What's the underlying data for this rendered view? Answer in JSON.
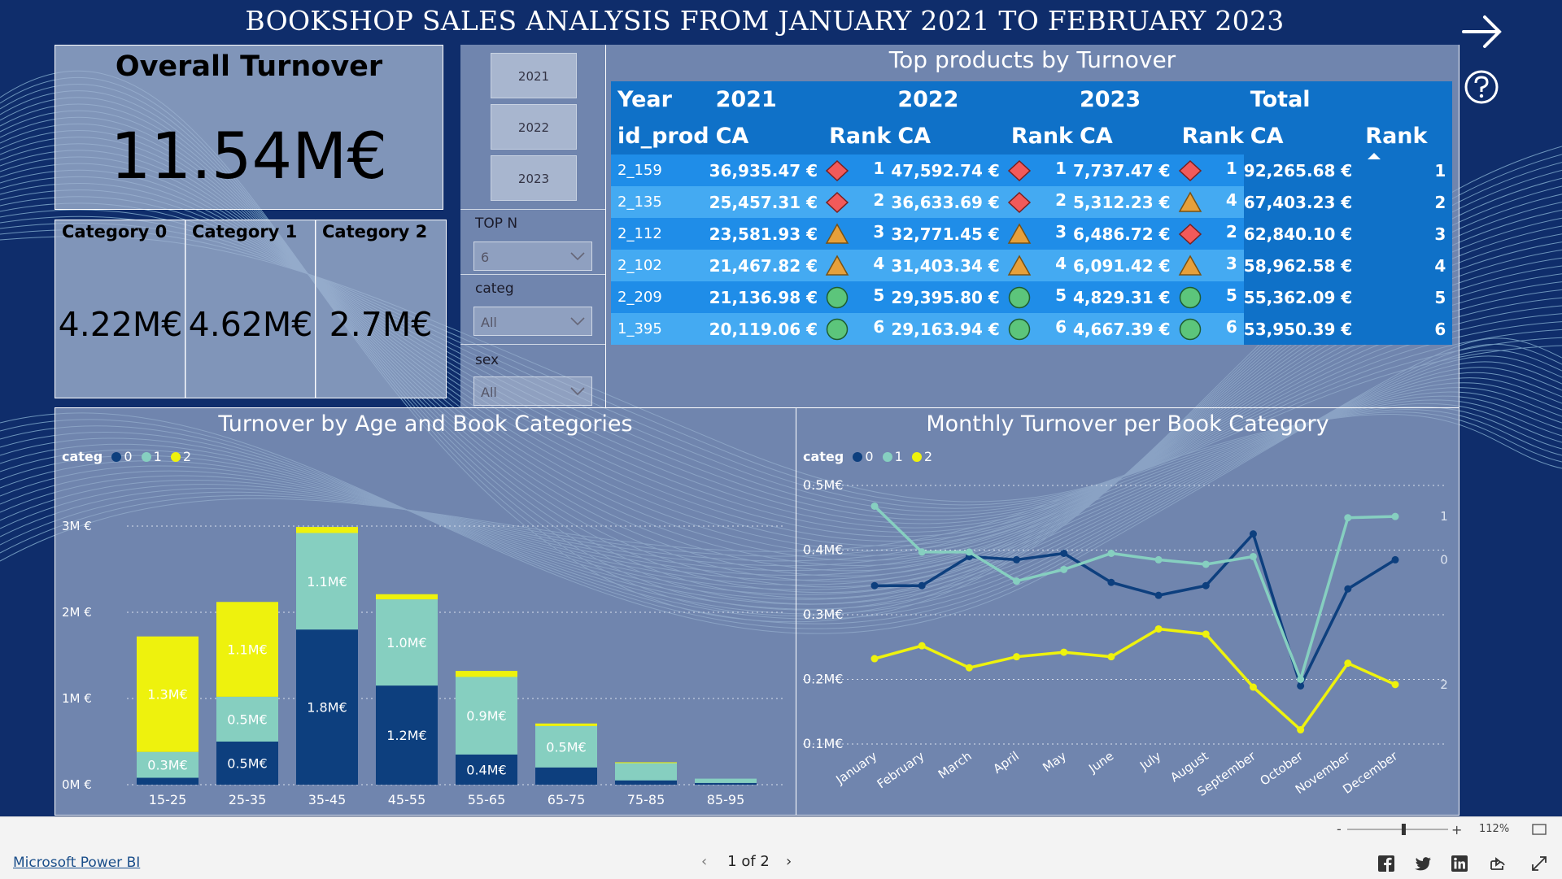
{
  "header": {
    "title": "BOOKSHOP SALES ANALYSIS FROM JANUARY 2021 TO FEBRUARY 2023"
  },
  "kpi": {
    "label": "Overall Turnover",
    "value": "11.54M€"
  },
  "categories": [
    {
      "label": "Category 0",
      "value": "4.22M€"
    },
    {
      "label": "Category 1",
      "value": "4.62M€"
    },
    {
      "label": "Category 2",
      "value": "2.7M€"
    }
  ],
  "slicers": {
    "years": [
      "2021",
      "2022",
      "2023"
    ],
    "topn": {
      "label": "TOP N",
      "value": "6"
    },
    "categ": {
      "label": "categ",
      "value": "All"
    },
    "sex": {
      "label": "sex",
      "value": "All"
    }
  },
  "top_products": {
    "title": "Top products by Turnover",
    "headers": {
      "year": "Year",
      "y2021": "2021",
      "y2022": "2022",
      "y2023": "2023",
      "total": "Total",
      "id": "id_prod",
      "ca": "CA",
      "rank": "Rank"
    },
    "rows": [
      {
        "id": "2_159",
        "ca2021": "36,935.47 €",
        "icon2021": "diamond",
        "rank2021": "1",
        "ca2022": "47,592.74 €",
        "icon2022": "diamond",
        "rank2022": "1",
        "ca2023": "7,737.47 €",
        "icon2023": "diamond",
        "rank2023": "1",
        "total": "92,265.68 €",
        "rank": "1"
      },
      {
        "id": "2_135",
        "ca2021": "25,457.31 €",
        "icon2021": "diamond",
        "rank2021": "2",
        "ca2022": "36,633.69 €",
        "icon2022": "diamond",
        "rank2022": "2",
        "ca2023": "5,312.23 €",
        "icon2023": "triangle",
        "rank2023": "4",
        "total": "67,403.23 €",
        "rank": "2"
      },
      {
        "id": "2_112",
        "ca2021": "23,581.93 €",
        "icon2021": "triangle",
        "rank2021": "3",
        "ca2022": "32,771.45 €",
        "icon2022": "triangle",
        "rank2022": "3",
        "ca2023": "6,486.72 €",
        "icon2023": "diamond",
        "rank2023": "2",
        "total": "62,840.10 €",
        "rank": "3"
      },
      {
        "id": "2_102",
        "ca2021": "21,467.82 €",
        "icon2021": "triangle",
        "rank2021": "4",
        "ca2022": "31,403.34 €",
        "icon2022": "triangle",
        "rank2022": "4",
        "ca2023": "6,091.42 €",
        "icon2023": "triangle",
        "rank2023": "3",
        "total": "58,962.58 €",
        "rank": "4"
      },
      {
        "id": "2_209",
        "ca2021": "21,136.98 €",
        "icon2021": "circle",
        "rank2021": "5",
        "ca2022": "29,395.80 €",
        "icon2022": "circle",
        "rank2022": "5",
        "ca2023": "4,829.31 €",
        "icon2023": "circle",
        "rank2023": "5",
        "total": "55,362.09 €",
        "rank": "5"
      },
      {
        "id": "1_395",
        "ca2021": "20,119.06 €",
        "icon2021": "circle",
        "rank2021": "6",
        "ca2022": "29,163.94 €",
        "icon2022": "circle",
        "rank2022": "6",
        "ca2023": "4,667.39 €",
        "icon2023": "circle",
        "rank2023": "6",
        "total": "53,950.39 €",
        "rank": "6"
      }
    ]
  },
  "chart_data": [
    {
      "type": "bar",
      "stacked": true,
      "title": "Turnover by Age and Book Categories",
      "legend_title": "categ",
      "legend_position": "top-left",
      "categories": [
        "15-25",
        "25-35",
        "35-45",
        "45-55",
        "55-65",
        "65-75",
        "75-85",
        "85-95"
      ],
      "series": [
        {
          "name": "0",
          "color": "#0d3f7e",
          "values": [
            0.08,
            0.5,
            1.8,
            1.15,
            0.35,
            0.2,
            0.05,
            0.02
          ],
          "labels": [
            "",
            "0.5M€",
            "1.8M€",
            "1.2M€",
            "0.4M€",
            "0.2M€",
            "",
            ""
          ]
        },
        {
          "name": "1",
          "color": "#86cfc0",
          "values": [
            0.3,
            0.52,
            1.12,
            1.0,
            0.9,
            0.48,
            0.2,
            0.05
          ],
          "labels": [
            "0.3M€",
            "0.5M€",
            "1.1M€",
            "1.0M€",
            "0.9M€",
            "0.5M€",
            "",
            ""
          ]
        },
        {
          "name": "2",
          "color": "#eef20d",
          "values": [
            1.34,
            1.1,
            0.07,
            0.06,
            0.07,
            0.03,
            0.01,
            0.0
          ],
          "labels": [
            "1.3M€",
            "1.1M€",
            "",
            "",
            "",
            "",
            "",
            ""
          ]
        }
      ],
      "y_ticks": [
        "0M €",
        "1M €",
        "2M €",
        "3M €"
      ],
      "ylim": [
        0,
        3.0
      ]
    },
    {
      "type": "line",
      "title": "Monthly Turnover per Book Category",
      "legend_title": "categ",
      "legend_position": "top-left",
      "categories": [
        "January",
        "February",
        "March",
        "April",
        "May",
        "June",
        "July",
        "August",
        "September",
        "October",
        "November",
        "December"
      ],
      "y_ticks": [
        "0.1M€",
        "0.2M€",
        "0.3M€",
        "0.4M€",
        "0.5M€"
      ],
      "ylim": [
        0.1,
        0.5
      ],
      "series": [
        {
          "name": "0",
          "color": "#0d3f7e",
          "values": [
            0.345,
            0.345,
            0.39,
            0.385,
            0.395,
            0.35,
            0.33,
            0.345,
            0.425,
            0.19,
            0.34,
            0.385
          ]
        },
        {
          "name": "1",
          "color": "#86cfc0",
          "values": [
            0.468,
            0.397,
            0.397,
            0.352,
            0.37,
            0.395,
            0.385,
            0.378,
            0.39,
            0.2,
            0.45,
            0.452
          ]
        },
        {
          "name": "2",
          "color": "#eef20d",
          "values": [
            0.232,
            0.252,
            0.218,
            0.235,
            0.242,
            0.235,
            0.278,
            0.27,
            0.188,
            0.122,
            0.225,
            0.192
          ]
        }
      ],
      "end_labels": [
        "0",
        "1",
        "2"
      ]
    }
  ],
  "footer": {
    "brand": "Microsoft Power BI",
    "page": "1 of 2",
    "zoom": "112%",
    "zoom_level": 0.56
  }
}
